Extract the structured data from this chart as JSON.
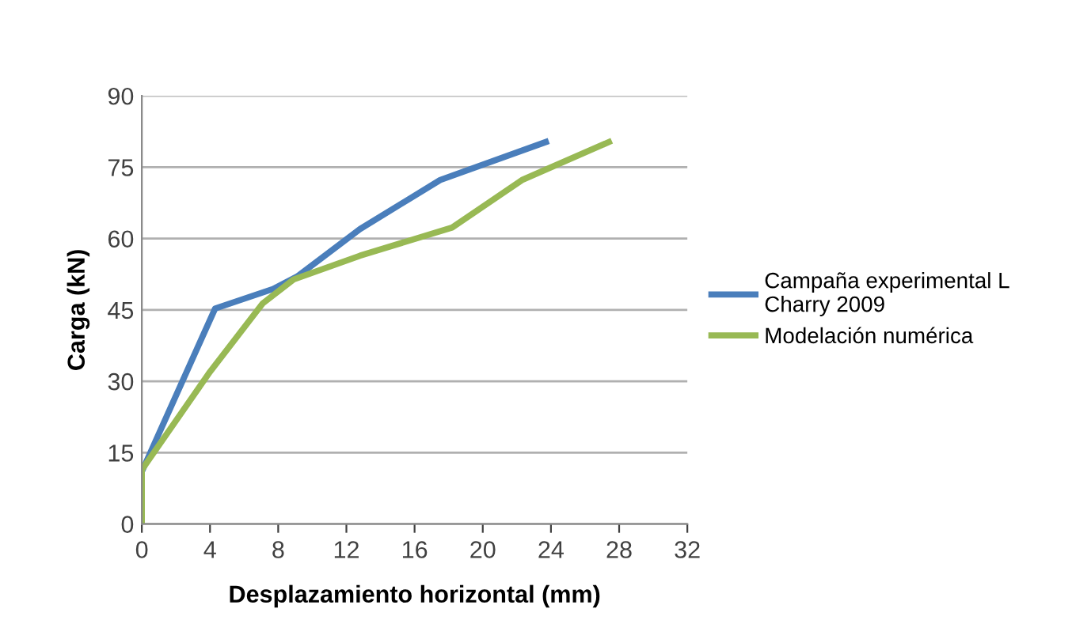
{
  "chart_data": {
    "type": "line",
    "xlabel": "Desplazamiento horizontal (mm)",
    "ylabel": "Carga (kN)",
    "xlim": [
      0,
      32
    ],
    "xticks": [
      0,
      4,
      8,
      12,
      16,
      20,
      24,
      28,
      32
    ],
    "ylim": [
      0,
      90
    ],
    "yticks": [
      0,
      15,
      30,
      45,
      60,
      75,
      90
    ],
    "grid": "y",
    "legend": "right",
    "marker": "none",
    "line_style": "solid",
    "series": [
      {
        "name": "Campaña experimental L\nCharry 2009",
        "color": "#4a7ebb",
        "x": [
          0,
          4.3,
          7.7,
          9.1,
          12.8,
          17.5,
          23.7
        ],
        "values": [
          11,
          45.3,
          49.4,
          52,
          62,
          72.3,
          80.3
        ]
      },
      {
        "name": "Modelación numérica",
        "color": "#98b954",
        "x": [
          0,
          0,
          4.0,
          7.1,
          8.9,
          12.8,
          18.2,
          22.3,
          27.4
        ],
        "values": [
          0,
          11.4,
          32,
          46.4,
          51.4,
          56.4,
          62.3,
          72.3,
          80.3
        ]
      }
    ]
  }
}
